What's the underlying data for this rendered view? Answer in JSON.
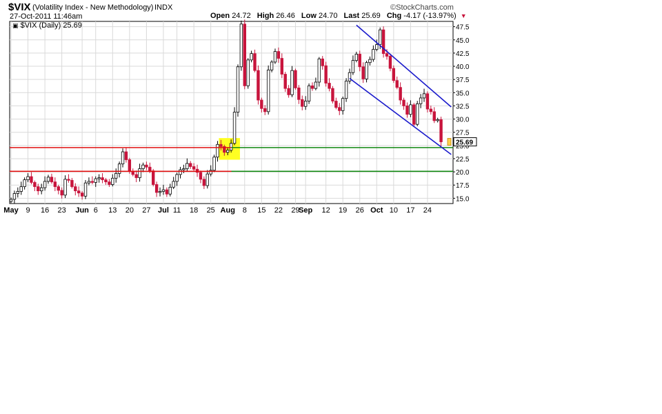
{
  "header": {
    "symbol": "$VIX",
    "company": "(Volatility Index - New Methodology)",
    "exchange": "INDX",
    "datetime": "27-Oct-2011 11:46am",
    "watermark": "©StockCharts.com",
    "quote": {
      "open_label": "Open",
      "open": "24.72",
      "high_label": "High",
      "high": "26.46",
      "low_label": "Low",
      "low": "24.70",
      "last_label": "Last",
      "last": "25.69",
      "chg_label": "Chg",
      "chg": "-4.17 (-13.97%)"
    },
    "legend": "$VIX (Daily) 25.69"
  },
  "chart_data": {
    "type": "candlestick",
    "title": "$VIX (Volatility Index - New Methodology) INDX",
    "series_label": "$VIX (Daily) 25.69",
    "y_ticks": [
      15.0,
      17.5,
      20.0,
      22.5,
      25.0,
      27.5,
      30.0,
      32.5,
      35.0,
      37.5,
      40.0,
      42.5,
      45.0,
      47.5
    ],
    "ylim": [
      14.0,
      48.5
    ],
    "last_value": 25.69,
    "last_label": "25.69",
    "x_labels": [
      {
        "label": "May",
        "idx": 0,
        "bold": true
      },
      {
        "label": "9",
        "idx": 5
      },
      {
        "label": "16",
        "idx": 10
      },
      {
        "label": "23",
        "idx": 15
      },
      {
        "label": "Jun",
        "idx": 21,
        "bold": true
      },
      {
        "label": "6",
        "idx": 25
      },
      {
        "label": "13",
        "idx": 30
      },
      {
        "label": "20",
        "idx": 35
      },
      {
        "label": "27",
        "idx": 40
      },
      {
        "label": "Jul",
        "idx": 45,
        "bold": true
      },
      {
        "label": "11",
        "idx": 49
      },
      {
        "label": "18",
        "idx": 54
      },
      {
        "label": "25",
        "idx": 59
      },
      {
        "label": "Aug",
        "idx": 64,
        "bold": true
      },
      {
        "label": "8",
        "idx": 69
      },
      {
        "label": "15",
        "idx": 74
      },
      {
        "label": "22",
        "idx": 79
      },
      {
        "label": "29",
        "idx": 84
      },
      {
        "label": "Sep",
        "idx": 87,
        "bold": true
      },
      {
        "label": "12",
        "idx": 93
      },
      {
        "label": "19",
        "idx": 98
      },
      {
        "label": "26",
        "idx": 103
      },
      {
        "label": "Oct",
        "idx": 108,
        "bold": true
      },
      {
        "label": "10",
        "idx": 113
      },
      {
        "label": "17",
        "idx": 118
      },
      {
        "label": "24",
        "idx": 123
      }
    ],
    "closes": [
      14.8,
      15.9,
      16.3,
      17.2,
      18.5,
      19.1,
      18.0,
      17.2,
      16.4,
      17.0,
      18.2,
      19.0,
      18.1,
      17.2,
      16.5,
      15.6,
      18.6,
      18.4,
      17.2,
      16.4,
      16.0,
      15.4,
      17.9,
      18.2,
      18.0,
      18.7,
      18.9,
      18.5,
      18.1,
      17.6,
      18.8,
      19.7,
      21.5,
      23.8,
      22.3,
      20.1,
      19.5,
      18.9,
      20.6,
      21.3,
      20.9,
      20.2,
      17.6,
      16.1,
      16.3,
      16.6,
      15.8,
      17.1,
      18.2,
      19.5,
      20.4,
      20.6,
      21.6,
      21.0,
      20.5,
      19.9,
      18.6,
      17.4,
      19.6,
      20.3,
      22.8,
      25.2,
      24.8,
      23.7,
      24.1,
      25.4,
      31.3,
      39.9,
      48.0,
      36.3,
      41.2,
      42.4,
      39.2,
      33.6,
      32.0,
      31.4,
      39.3,
      40.8,
      42.8,
      41.5,
      38.5,
      35.8,
      34.6,
      39.2,
      35.9,
      33.7,
      32.4,
      33.4,
      36.3,
      35.8,
      37.0,
      41.4,
      40.1,
      36.8,
      35.8,
      33.4,
      32.2,
      31.6,
      33.9,
      37.2,
      38.8,
      41.1,
      42.3,
      39.9,
      37.6,
      40.7,
      41.3,
      43.2,
      44.1,
      46.9,
      42.4,
      41.9,
      39.6,
      37.3,
      36.0,
      33.6,
      32.5,
      30.9,
      32.7,
      29.0,
      32.9,
      34.0,
      34.8,
      31.9,
      31.4,
      29.7,
      29.9,
      25.69
    ],
    "reference_lines": [
      {
        "name": "resistance-upper",
        "value": 24.6,
        "color": "#e01010"
      },
      {
        "name": "support-upper",
        "value": 24.6,
        "color": "#118811"
      },
      {
        "name": "resistance-lower",
        "value": 20.1,
        "color": "#e01010"
      },
      {
        "name": "support-lower",
        "value": 20.1,
        "color": "#118811"
      }
    ],
    "channel_lines": [
      {
        "name": "channel-upper",
        "from": {
          "idx": 102,
          "y": 47.8
        },
        "to": {
          "idx": 130,
          "y": 32.3
        }
      },
      {
        "name": "channel-lower",
        "from": {
          "idx": 100,
          "y": 37.7
        },
        "to": {
          "idx": 130,
          "y": 23.3
        }
      }
    ],
    "highlight_box": {
      "from_idx": 62,
      "to_idx": 67,
      "y_low": 22.3,
      "y_high": 26.4
    },
    "colors": {
      "up_fill": "#ffffff",
      "up_stroke": "#000000",
      "down_fill": "#c8143c",
      "grid": "#d9d9d9",
      "axis": "#000000",
      "channel": "#1a1acc",
      "highlight": "#ffff22",
      "last_box": "#ffd24d"
    }
  }
}
